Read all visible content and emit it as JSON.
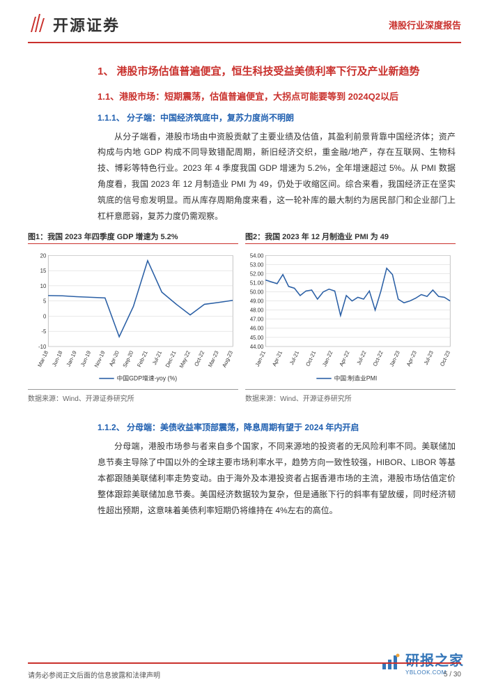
{
  "header": {
    "company_name": "开源证券",
    "report_category": "港股行业深度报告",
    "logo_color": "#c9302c"
  },
  "section1": {
    "title": "1、 港股市场估值普遍便宜，恒生科技受益美债利率下行及产业新趋势",
    "sub11": {
      "title": "1.1、港股市场：短期震荡，估值普遍便宜，大拐点可能要等到 2024Q2以后",
      "sub111": {
        "title": "1.1.1、 分子端：中国经济筑底中，复苏力度尚不明朗",
        "body": "从分子端看，港股市场由中资股贡献了主要业绩及估值，其盈利前景背靠中国经济体；资产构成与内地 GDP 构成不同导致错配周期，新旧经济交织，重金融/地产，存在互联网、生物科技、博彩等特色行业。2023 年 4 季度我国 GDP 增速为 5.2%，全年增速超过 5%。从 PMI 数据角度看，我国 2023 年 12 月制造业 PMI 为 49，仍处于收缩区间。综合来看，我国经济正在坚实筑底的信号愈发明显。而从库存周期角度来看，这一轮补库的最大制约为居民部门和企业部门上杠杆意愿弱，复苏力度仍需观察。"
      },
      "sub112": {
        "title": "1.1.2、 分母端：美债收益率顶部震荡，降息周期有望于 2024 年内开启",
        "body": "分母端，港股市场参与者来自多个国家，不同来源地的投资者的无风险利率不同。美联储加息节奏主导除了中国以外的全球主要市场利率水平，趋势方向一致性较强，HIBOR、LIBOR 等基本都跟随美联储利率走势变动。由于海外及本港投资者占据香港市场的主流，港股市场估值定价整体跟踪美联储加息节奏。美国经济数据较为复杂，但是通胀下行的斜率有望放缓，同时经济韧性超出预期，这意味着美债利率短期仍将维持在 4%左右的高位。"
      }
    }
  },
  "chart1": {
    "title": "图1：我国 2023 年四季度 GDP 增速为 5.2%",
    "type": "line",
    "legend": "中国GDP增速-yoy (%)",
    "source": "数据来源：Wind、开源证券研究所",
    "line_color": "#2a5fa5",
    "background_color": "#ffffff",
    "grid_color": "#d0d0d0",
    "ylim": [
      -10,
      20
    ],
    "yticks": [
      -10,
      -5,
      0,
      5,
      10,
      15,
      20
    ],
    "x_labels": [
      "Mar-18",
      "Jun-18",
      "Jan-19",
      "Jun-19",
      "Nov-19",
      "Apr-20",
      "Sep-20",
      "Feb-21",
      "Jul-21",
      "Dec-21",
      "May-22",
      "Oct-22",
      "Mar-23",
      "Aug-23"
    ],
    "values": [
      6.8,
      6.7,
      6.4,
      6.2,
      6.0,
      -6.8,
      3.2,
      18.3,
      7.9,
      4.0,
      0.4,
      3.9,
      4.5,
      5.2
    ]
  },
  "chart2": {
    "title": "图2：我国 2023 年 12 月制造业 PMI 为 49",
    "type": "line",
    "legend": "中国:制造业PMI",
    "source": "数据来源：Wind、开源证券研究所",
    "line_color": "#2a5fa5",
    "background_color": "#ffffff",
    "grid_color": "#d0d0d0",
    "ylim": [
      44,
      54
    ],
    "yticks": [
      44,
      45,
      46,
      47,
      48,
      49,
      50,
      51,
      52,
      53,
      54
    ],
    "x_labels": [
      "Jan-21",
      "Apr-21",
      "Jul-21",
      "Oct-21",
      "Jan-22",
      "Apr-22",
      "Jul-22",
      "Oct-22",
      "Jan-23",
      "Apr-23",
      "Jul-23",
      "Oct-23"
    ],
    "values": [
      51.3,
      51.1,
      50.9,
      51.9,
      50.6,
      50.4,
      49.6,
      50.1,
      50.2,
      49.2,
      50.0,
      50.3,
      50.1,
      47.4,
      49.6,
      49.0,
      49.4,
      49.2,
      50.1,
      48.0,
      50.1,
      52.6,
      51.9,
      49.2,
      48.8,
      49.0,
      49.3,
      49.7,
      49.5,
      50.2,
      49.5,
      49.4,
      49.0
    ]
  },
  "footer": {
    "disclaimer": "请务必参阅正文后面的信息披露和法律声明",
    "page": "5 / 30"
  },
  "watermark": {
    "name": "研报之家",
    "url": "YBLOOK.COM",
    "color": "#2a6fb5"
  }
}
